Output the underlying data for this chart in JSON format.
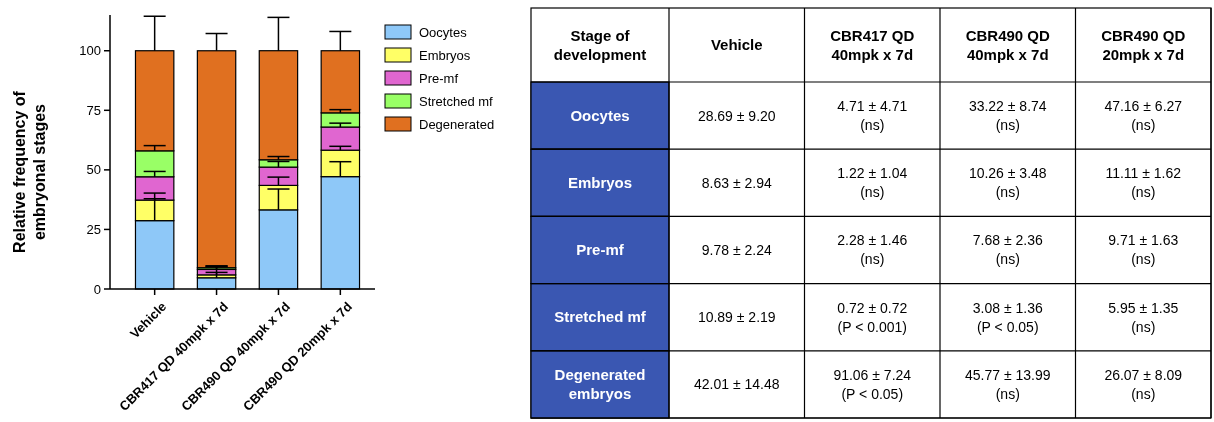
{
  "chart_data": [
    {
      "type": "bar",
      "stacked": true,
      "ylabel": "Relative frequency of embryonal stages",
      "categories": [
        "Vehicle",
        "CBR417 QD 40mpk x 7d",
        "CBR490 QD 40mpk x 7d",
        "CBR490 QD 20mpk x 7d"
      ],
      "ylim": [
        0,
        115
      ],
      "yticks": [
        0,
        25,
        50,
        75,
        100
      ],
      "grid": false,
      "legend": "right",
      "series": [
        {
          "name": "Oocytes",
          "color": "#8ec8f8",
          "values": [
            28.69,
            4.71,
            33.22,
            47.16
          ],
          "errors": [
            [
              28.69,
              37.89
            ],
            [
              4.71,
              9.42
            ],
            [
              33.22,
              41.96
            ],
            [
              47.16,
              53.43
            ]
          ]
        },
        {
          "name": "Embryos",
          "color": "#ffff66",
          "values": [
            8.63,
            1.22,
            10.26,
            11.11
          ],
          "errors": [
            [
              37.32,
              40.26
            ],
            [
              5.93,
              6.97
            ],
            [
              43.48,
              46.96
            ],
            [
              58.27,
              59.89
            ]
          ]
        },
        {
          "name": "Pre-mf",
          "color": "#e066d0",
          "values": [
            9.78,
            2.28,
            7.68,
            9.71
          ],
          "errors": [
            [
              47.1,
              49.34
            ],
            [
              8.21,
              9.67
            ],
            [
              51.16,
              53.52
            ],
            [
              67.98,
              69.61
            ]
          ]
        },
        {
          "name": "Stretched mf",
          "color": "#99ff66",
          "values": [
            10.89,
            0.72,
            3.08,
            5.95
          ],
          "errors": [
            [
              57.99,
              60.18
            ],
            [
              8.93,
              9.65
            ],
            [
              54.24,
              55.6
            ],
            [
              73.93,
              75.28
            ]
          ]
        },
        {
          "name": "Degenerated",
          "color": "#e07020",
          "values": [
            42.01,
            91.06,
            45.77,
            26.07
          ],
          "errors": [
            [
              100,
              114.48
            ],
            [
              99.99,
              107.23
            ],
            [
              100.01,
              114
            ],
            [
              100,
              108.09
            ]
          ]
        }
      ]
    },
    {
      "type": "other",
      "ylabel": "Stage of development",
      "categories": [
        "Vehicle",
        "CBR417 QD 40mpk x 7d",
        "CBR490 QD 40mpk x 7d",
        "CBR490 QD 20mpk x 7d"
      ],
      "y_categories": [
        "Oocytes",
        "Embryos",
        "Pre-mf",
        "Stretched mf",
        "Degenerated embryos"
      ],
      "cell_labels": [
        [
          "28.69 ± 9.20",
          "4.71 ± 4.71 (ns)",
          "33.22 ± 8.74 (ns)",
          "47.16 ± 6.27 (ns)"
        ],
        [
          "8.63 ± 2.94",
          "1.22 ± 1.04 (ns)",
          "10.26 ± 3.48 (ns)",
          "11.11 ± 1.62 (ns)"
        ],
        [
          "9.78 ± 2.24",
          "2.28 ± 1.46 (ns)",
          "7.68 ± 2.36 (ns)",
          "9.71 ± 1.63 (ns)"
        ],
        [
          "10.89 ± 2.19",
          "0.72 ± 0.72 (P < 0.001)",
          "3.08 ± 1.36 (P < 0.05)",
          "5.95 ± 1.35 (ns)"
        ],
        [
          "42.01 ± 14.48",
          "91.06 ± 7.24 (P < 0.05)",
          "45.77 ± 13.99 (ns)",
          "26.07 ± 8.09 (ns)"
        ]
      ]
    }
  ]
}
